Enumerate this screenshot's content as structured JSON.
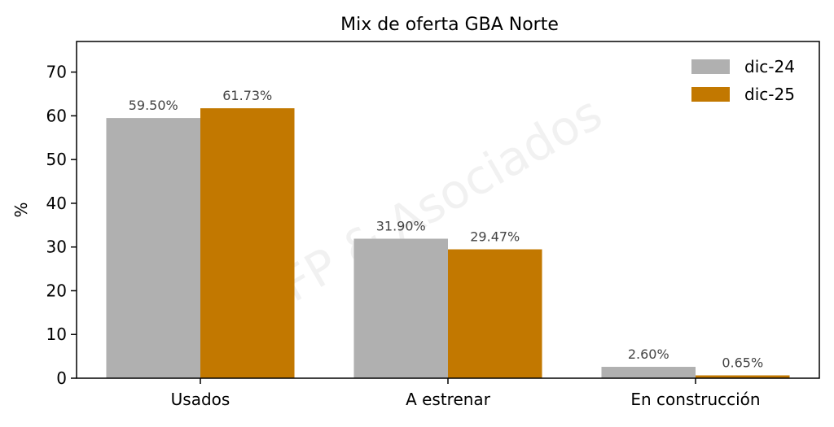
{
  "chart_data": {
    "type": "bar",
    "title": "Mix de oferta GBA Norte",
    "xlabel": "",
    "ylabel": "%",
    "categories": [
      "Usados",
      "A estrenar",
      "En construcción"
    ],
    "series": [
      {
        "name": "dic-24",
        "values": [
          59.5,
          31.9,
          2.6
        ],
        "labels": [
          "59.50%",
          "31.90%",
          "2.60%"
        ],
        "color": "#b0b0b0"
      },
      {
        "name": "dic-25",
        "values": [
          61.73,
          29.47,
          0.65
        ],
        "labels": [
          "61.73%",
          "29.47%",
          "0.65%"
        ],
        "color": "#c27800"
      }
    ],
    "ylim": [
      0,
      77
    ],
    "yticks": [
      0,
      10,
      20,
      30,
      40,
      50,
      60,
      70
    ],
    "grid": false,
    "legend_position": "top-right",
    "watermark": "FP & Asociados"
  }
}
